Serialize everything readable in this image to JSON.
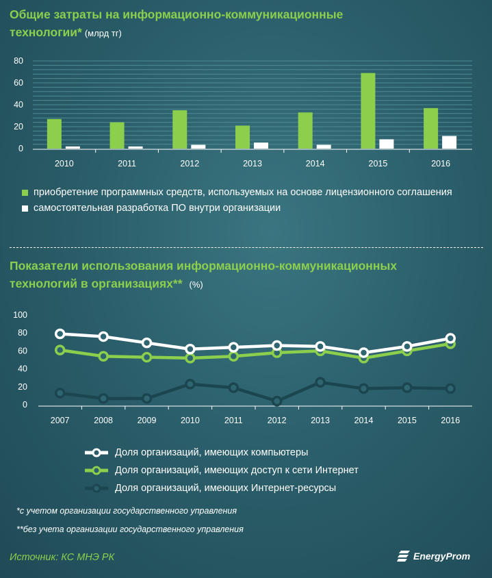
{
  "section1": {
    "title_line1": "Общие затраты на информационно-коммуникационные",
    "title_line2": "технологии",
    "title_star": "*",
    "unit": "(млрд тг)",
    "legend": [
      {
        "label": "приобретение программных средств, используемых на основе лицензионного соглашения",
        "color": "#8ccf4d"
      },
      {
        "label": "самостоятельная разработка ПО внутри организации",
        "color": "#ffffff"
      }
    ]
  },
  "section2": {
    "title_line1": "Показатели использования информационно-коммуникационных",
    "title_line2": "технологий в организациях",
    "title_star": "**",
    "unit": "(%)",
    "legend": [
      {
        "label": "Доля организаций, имеющих компьютеры",
        "color": "#ffffff"
      },
      {
        "label": "Доля организаций, имеющих доступ к сети Интернет",
        "color": "#8ccf4d"
      },
      {
        "label": "Доля организаций, имеющих Интернет-ресурсы",
        "color": "#1b4650"
      }
    ]
  },
  "notes": {
    "note1": "*с учетом организации государственного управления",
    "note2": "**без учета организации государственного управления"
  },
  "source": "Источник: КС МНЭ РК",
  "brand": "EnergyProm",
  "chart_data": [
    {
      "type": "bar",
      "categories": [
        "2010",
        "2011",
        "2012",
        "2013",
        "2014",
        "2015",
        "2016"
      ],
      "series": [
        {
          "name": "приобретение программных средств, используемых на основе лицензионного соглашения",
          "values": [
            27,
            24,
            35,
            21,
            33,
            69,
            37
          ],
          "color": "#8ccf4d"
        },
        {
          "name": "самостоятельная разработка ПО внутри организации",
          "values": [
            2,
            2,
            3.5,
            5.5,
            3.5,
            8.5,
            11.5
          ],
          "color": "#ffffff"
        }
      ],
      "yticks": [
        0,
        20,
        40,
        60,
        80
      ],
      "ylim": [
        0,
        80
      ],
      "grid": true
    },
    {
      "type": "line",
      "x": [
        "2007",
        "2008",
        "2009",
        "2010",
        "2011",
        "2012",
        "2013",
        "2014",
        "2015",
        "2016"
      ],
      "series": [
        {
          "name": "Доля организаций, имеющих компьютеры",
          "values": [
            79,
            76,
            69,
            62,
            64,
            66,
            65,
            58,
            65,
            74
          ],
          "color": "#ffffff"
        },
        {
          "name": "Доля организаций, имеющих доступ к сети Интернет",
          "values": [
            61,
            54,
            53,
            52,
            54,
            58,
            60,
            52,
            60,
            68
          ],
          "color": "#8ccf4d"
        },
        {
          "name": "Доля организаций, имеющих Интернет-ресурсы",
          "values": [
            13,
            7,
            7,
            23,
            19,
            4,
            25,
            18,
            19,
            18
          ],
          "color": "#1b4650"
        }
      ],
      "yticks": [
        0,
        20,
        40,
        60,
        80,
        100
      ],
      "ylim": [
        0,
        100
      ],
      "grid": false
    }
  ]
}
